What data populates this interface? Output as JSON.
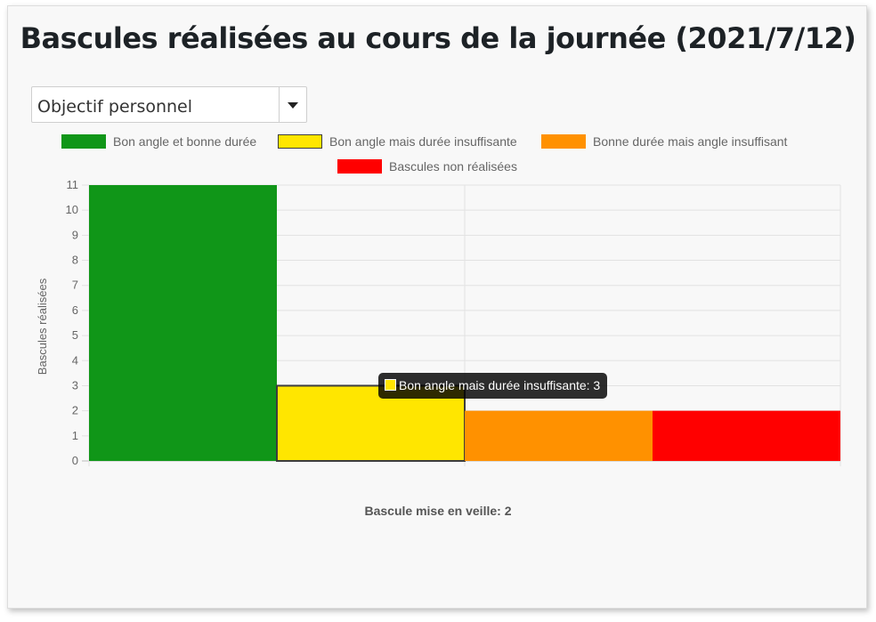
{
  "title": "Bascules réalisées au cours de la journée (2021/7/12)",
  "select": {
    "value": "Objectif personnel",
    "icon": "caret-down-icon"
  },
  "footer_note": "Bascule mise en veille: 2",
  "tooltip": {
    "text": "Bon angle mais durée insuffisante: 3",
    "series_index": 1
  },
  "chart_data": {
    "type": "bar",
    "title": "",
    "xlabel": "",
    "ylabel": "Bascules réalisées",
    "ylim": [
      0,
      11
    ],
    "yticks": [
      0,
      1,
      2,
      3,
      4,
      5,
      6,
      7,
      8,
      9,
      10,
      11
    ],
    "grid": true,
    "legend_position": "top",
    "series": [
      {
        "name": "Bon angle et bonne durée",
        "values": [
          11
        ],
        "color": "#109618"
      },
      {
        "name": "Bon angle mais durée insuffisante",
        "values": [
          3
        ],
        "color": "#ffe600",
        "border": "#3d3d3d"
      },
      {
        "name": "Bonne durée mais angle insuffisant",
        "values": [
          2
        ],
        "color": "#ff9100"
      },
      {
        "name": "Bascules non réalisées",
        "values": [
          2
        ],
        "color": "#ff0000"
      }
    ]
  }
}
